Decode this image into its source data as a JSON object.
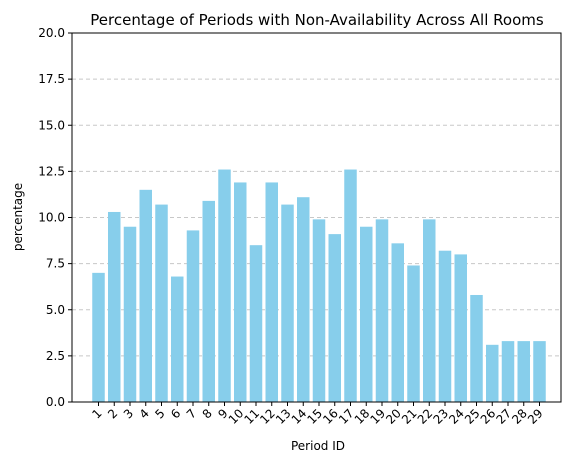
{
  "chart_data": {
    "type": "bar",
    "title": "Percentage of Periods with Non-Availability Across All Rooms",
    "xlabel": "Period ID",
    "ylabel": "percentage",
    "categories": [
      "1",
      "2",
      "3",
      "4",
      "5",
      "6",
      "7",
      "8",
      "9",
      "10",
      "11",
      "12",
      "13",
      "14",
      "15",
      "16",
      "17",
      "18",
      "19",
      "20",
      "21",
      "22",
      "23",
      "24",
      "25",
      "26",
      "27",
      "28",
      "29"
    ],
    "values": [
      7.0,
      10.3,
      9.5,
      11.5,
      10.7,
      6.8,
      9.3,
      10.9,
      12.6,
      11.9,
      8.5,
      11.9,
      10.7,
      11.1,
      9.9,
      9.1,
      12.6,
      9.5,
      9.9,
      8.6,
      7.4,
      9.9,
      8.2,
      8.0,
      5.8,
      3.1,
      3.3,
      3.3,
      3.3
    ],
    "ylim": [
      0,
      20
    ],
    "yticks": [
      "0.0",
      "2.5",
      "5.0",
      "7.5",
      "10.0",
      "12.5",
      "15.0",
      "17.5",
      "20.0"
    ],
    "grid": "y-dashed",
    "bar_color": "#87ceeb"
  }
}
